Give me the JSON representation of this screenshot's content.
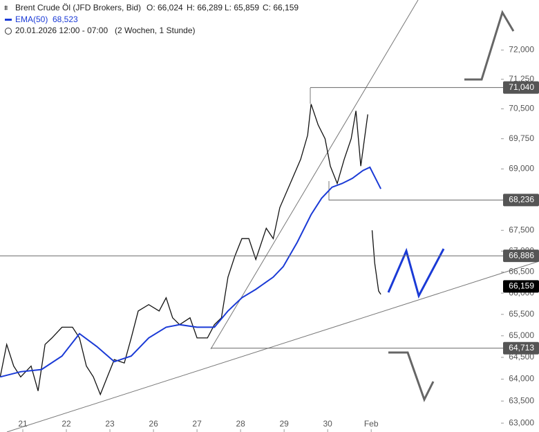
{
  "chart_data": {
    "type": "line",
    "title": "Brent Crude Öl (JFD Brokers, Bid)",
    "ohlc": [
      "O: 66,024",
      "H: 66,289",
      "L: 65,859",
      "C: 66,159"
    ],
    "indicator_value": "68,523",
    "subtitle": "20.01.2026 12:00 - 07:00",
    "timeframe": "(2 Wochen, 1 Stunde)",
    "ylog": true,
    "ylim": [
      62.8,
      73.3
    ],
    "yticks": [
      {
        "value": 63,
        "label": "63,000"
      },
      {
        "value": 63.5,
        "label": "63,500"
      },
      {
        "value": 64,
        "label": "64,000"
      },
      {
        "value": 64.5,
        "label": "64,500"
      },
      {
        "value": 65,
        "label": "65,000"
      },
      {
        "value": 65.5,
        "label": "65,500"
      },
      {
        "value": 66,
        "label": "66,000"
      },
      {
        "value": 66.5,
        "label": "66,500"
      },
      {
        "value": 67,
        "label": "67,000"
      },
      {
        "value": 67.5,
        "label": "67,500"
      },
      {
        "value": 69,
        "label": "69,000"
      },
      {
        "value": 69.75,
        "label": "69,750"
      },
      {
        "value": 70.5,
        "label": "70,500"
      },
      {
        "value": 71.25,
        "label": "71,250"
      },
      {
        "value": 72,
        "label": "72,000"
      }
    ],
    "xlim": [
      -0.524,
      10.98
    ],
    "xticks": [
      {
        "value": 0,
        "label": "21"
      },
      {
        "value": 1,
        "label": "22"
      },
      {
        "value": 2,
        "label": "23"
      },
      {
        "value": 3,
        "label": "26"
      },
      {
        "value": 4,
        "label": "27"
      },
      {
        "value": 5,
        "label": "28"
      },
      {
        "value": 6,
        "label": "29"
      },
      {
        "value": 7,
        "label": "30"
      },
      {
        "value": 8,
        "label": "Feb"
      }
    ],
    "series": [
      {
        "name": "Brent Crude Öl",
        "color": "#111111",
        "x": [
          -0.52,
          -0.37,
          -0.21,
          -0.05,
          0.19,
          0.35,
          0.51,
          0.67,
          0.9,
          1.14,
          1.3,
          1.46,
          1.62,
          1.78,
          1.94,
          2.1,
          2.33,
          2.49,
          2.65,
          2.89,
          3.13,
          3.29,
          3.44,
          3.6,
          3.84,
          4,
          4.24,
          4.4,
          4.56,
          4.71,
          4.87,
          5.03,
          5.19,
          5.35,
          5.59,
          5.75,
          5.9,
          6.14,
          6.38,
          6.54,
          6.62,
          6.78,
          6.94,
          7.06,
          7.22,
          7.38,
          7.54,
          7.65,
          7.76,
          7.92,
          7.97,
          8.02,
          8.08,
          8.17,
          8.22
        ],
        "values": [
          64.05,
          64.8,
          64.3,
          64.05,
          64.3,
          63.73,
          64.8,
          64.95,
          65.2,
          65.2,
          64.95,
          64.3,
          64.05,
          63.65,
          64.05,
          64.45,
          64.37,
          64.95,
          65.58,
          65.73,
          65.58,
          65.89,
          65.42,
          65.26,
          65.42,
          64.95,
          64.95,
          65.26,
          65.42,
          66.38,
          66.88,
          67.3,
          67.3,
          66.8,
          67.55,
          67.3,
          68.05,
          68.64,
          69.24,
          69.84,
          70.62,
          70.1,
          69.75,
          69.07,
          68.64,
          69.24,
          69.75,
          70.45,
          69.07,
          70.36,
          null,
          67.5,
          66.72,
          66.05,
          65.97
        ]
      },
      {
        "name": "EMA(50)",
        "color": "#1a3ad6",
        "x": [
          -0.52,
          -0.05,
          0.43,
          0.9,
          1.3,
          1.7,
          2.1,
          2.49,
          2.89,
          3.29,
          3.6,
          4,
          4.4,
          4.71,
          5.03,
          5.35,
          5.75,
          5.98,
          6.3,
          6.62,
          6.86,
          7.1,
          7.33,
          7.57,
          7.81,
          7.97,
          8.22
        ],
        "values": [
          64.05,
          64.17,
          64.22,
          64.53,
          65.05,
          64.75,
          64.4,
          64.53,
          64.95,
          65.2,
          65.26,
          65.2,
          65.2,
          65.58,
          65.89,
          66.09,
          66.38,
          66.63,
          67.21,
          67.88,
          68.28,
          68.55,
          68.64,
          68.77,
          68.96,
          69.04,
          68.51
        ]
      }
    ],
    "levels": [
      {
        "value": 71.04,
        "label": "71,040",
        "color": "#555555"
      },
      {
        "value": 68.236,
        "label": "68,236",
        "color": "#555555"
      },
      {
        "value": 66.886,
        "label": "66,886",
        "color": "#555555"
      },
      {
        "value": 66.159,
        "label": "66,159",
        "color": "#000000"
      },
      {
        "value": 64.713,
        "label": "64,713",
        "color": "#555555"
      }
    ]
  }
}
